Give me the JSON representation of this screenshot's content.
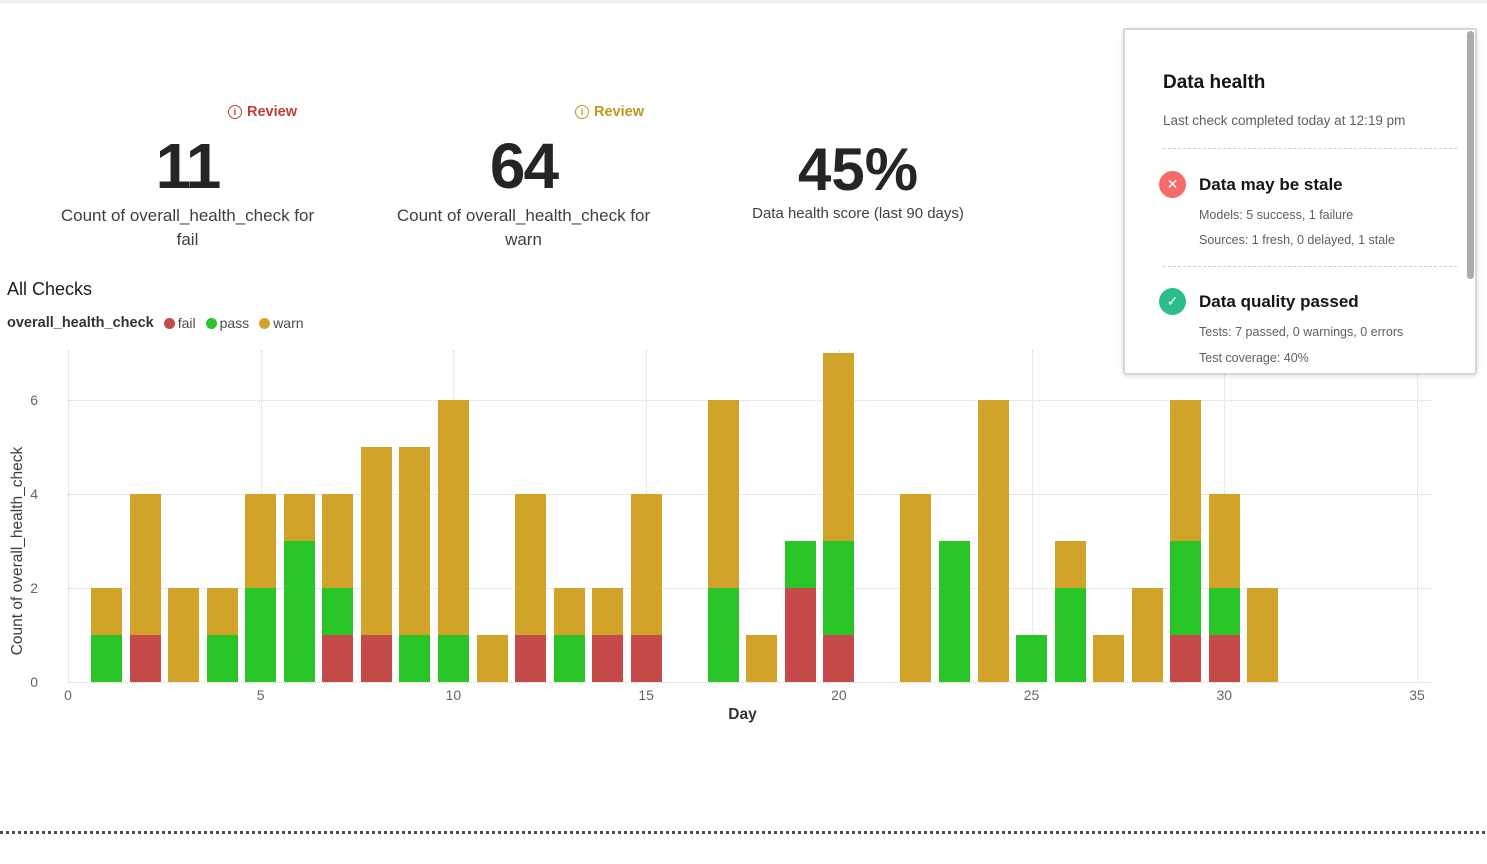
{
  "kpis": [
    {
      "badge": "Review",
      "badge_color": "#c43b3b",
      "value": "11",
      "label": "Count of overall_health_check for fail"
    },
    {
      "badge": "Review",
      "badge_color": "#c2981b",
      "value": "64",
      "label": "Count of overall_health_check for warn"
    },
    {
      "value": "45%",
      "label": "Data health score (last 90 days)"
    }
  ],
  "section_title": "All Checks",
  "legend": {
    "series_label": "overall_health_check",
    "items": [
      {
        "label": "fail",
        "color": "#c64a4a"
      },
      {
        "label": "pass",
        "color": "#28c428"
      },
      {
        "label": "warn",
        "color": "#d1a429"
      }
    ]
  },
  "chart_data": {
    "type": "bar",
    "stacked": true,
    "title": "All Checks",
    "xlabel": "Day",
    "ylabel": "Count of overall_health_check",
    "days": [
      1,
      2,
      3,
      4,
      5,
      6,
      7,
      8,
      9,
      10,
      11,
      12,
      13,
      14,
      15,
      16,
      17,
      18,
      19,
      20,
      21,
      22,
      23,
      24,
      25,
      26,
      27,
      28,
      29,
      30,
      31
    ],
    "series": [
      {
        "name": "fail",
        "color": "#c64a4a",
        "values": [
          0,
          1,
          0,
          0,
          0,
          0,
          1,
          1,
          0,
          0,
          0,
          1,
          0,
          1,
          1,
          0,
          0,
          0,
          2,
          1,
          0,
          0,
          0,
          0,
          0,
          0,
          0,
          0,
          1,
          1,
          0
        ]
      },
      {
        "name": "pass",
        "color": "#28c428",
        "values": [
          1,
          0,
          0,
          1,
          2,
          3,
          1,
          0,
          1,
          1,
          0,
          0,
          1,
          0,
          0,
          0,
          2,
          0,
          1,
          2,
          0,
          0,
          3,
          0,
          1,
          2,
          0,
          0,
          2,
          1,
          0
        ]
      },
      {
        "name": "warn",
        "color": "#d1a429",
        "values": [
          1,
          3,
          2,
          1,
          2,
          1,
          2,
          4,
          4,
          5,
          1,
          3,
          1,
          1,
          3,
          0,
          4,
          1,
          0,
          4,
          0,
          4,
          0,
          6,
          0,
          1,
          1,
          2,
          3,
          2,
          2
        ]
      }
    ],
    "xticks": [
      0,
      5,
      10,
      15,
      20,
      25,
      30,
      35
    ],
    "yticks": [
      0,
      2,
      4,
      6
    ],
    "xlim": [
      0,
      36
    ],
    "ylim": [
      0,
      7.2
    ],
    "grid": "dotted",
    "legend_position": "top-left"
  },
  "health_panel": {
    "title": "Data health",
    "subtitle": "Last check completed today at 12:19 pm",
    "sections": [
      {
        "icon": "error-x",
        "icon_color": "#f56a6a",
        "title": "Data may be stale",
        "lines": [
          "Models: 5 success, 1 failure",
          "Sources: 1 fresh, 0 delayed, 1 stale"
        ]
      },
      {
        "icon": "success-check",
        "icon_color": "#2dbd8a",
        "title": "Data quality passed",
        "lines": [
          "Tests: 7 passed, 0 warnings, 0 errors",
          "Test coverage: 40%"
        ]
      }
    ],
    "icon_glyphs": {
      "error-x": "✕",
      "success-check": "✓"
    }
  }
}
